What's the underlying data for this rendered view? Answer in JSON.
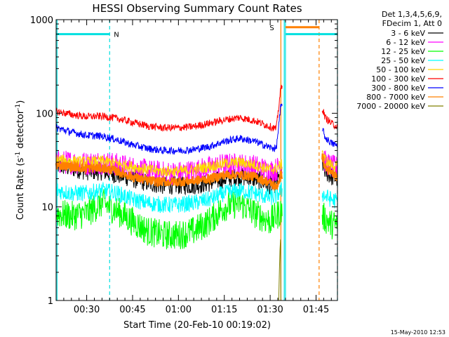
{
  "chart_data": {
    "type": "line",
    "title": "HESSI Observing Summary Count Rates",
    "xlabel": "Start Time (20-Feb-10 00:19:02)",
    "ylabel": "Count Rate (s⁻¹ detector⁻¹)",
    "ylabel_main": "Count Rate (s",
    "ylabel_sup1": "-1",
    "ylabel_mid": " detector",
    "ylabel_sup2": "-1",
    "ylabel_end": ")",
    "yscale": "log",
    "ylim": [
      1,
      1000
    ],
    "xlim_minutes": [
      20.0,
      112.0
    ],
    "x_ticks": [
      {
        "label": "00:30",
        "minutes": 30
      },
      {
        "label": "00:45",
        "minutes": 45
      },
      {
        "label": "01:00",
        "minutes": 60
      },
      {
        "label": "01:15",
        "minutes": 75
      },
      {
        "label": "01:30",
        "minutes": 90
      },
      {
        "label": "01:45",
        "minutes": 105
      }
    ],
    "y_ticks": [
      {
        "label": "1",
        "value": 1
      },
      {
        "label": "10",
        "value": 10
      },
      {
        "label": "100",
        "value": 100
      },
      {
        "label": "1000",
        "value": 1000
      }
    ],
    "legend_header": [
      "Det 1,3,4,5,6,9,",
      "FDecim 1, Att 0"
    ],
    "legend_placement": "right",
    "timestamp": "15-May-2010 12:53",
    "annotations": [
      {
        "label": "N",
        "color": "#00e0e0"
      },
      {
        "label": "S",
        "color": "#ff8000"
      }
    ],
    "vertical_markers": [
      {
        "minutes": 20.3,
        "color": "#00e0e0",
        "style": "solid"
      },
      {
        "minutes": 37.5,
        "color": "#00e0e0",
        "style": "dashed"
      },
      {
        "minutes": 93.5,
        "color": "#ff8000",
        "style": "solid"
      },
      {
        "minutes": 94.6,
        "color": "#00e0e0",
        "style": "solid"
      },
      {
        "minutes": 95.0,
        "color": "#00e0e0",
        "style": "solid"
      },
      {
        "minutes": 106.0,
        "color": "#ff8000",
        "style": "dashed"
      },
      {
        "minutes": 112.0,
        "color": "#00e0e0",
        "style": "dashed"
      }
    ],
    "bars": [
      {
        "color": "#00e0e0",
        "start": 20.0,
        "end": 37.5,
        "value": 700
      },
      {
        "color": "#00e0e0",
        "start": 95.0,
        "end": 112.0,
        "value": 700
      },
      {
        "color": "#ff8000",
        "start": 95.0,
        "end": 106.0,
        "value": 830
      }
    ],
    "data_gap_minutes": [
      94.0,
      107.0
    ],
    "series": [
      {
        "name": "3 - 6 keV",
        "color": "#000000",
        "x": [
          20,
          25,
          30,
          35,
          40,
          45,
          50,
          55,
          60,
          65,
          70,
          75,
          80,
          85,
          90,
          92,
          93.5,
          107,
          108,
          110,
          112
        ],
        "y": [
          28,
          26,
          24,
          24,
          22,
          20,
          18,
          17,
          17,
          17,
          18,
          20,
          21,
          20,
          17,
          18,
          22,
          30,
          24,
          21,
          20
        ]
      },
      {
        "name": "6 - 12 keV",
        "color": "#ff00ff",
        "x": [
          20,
          25,
          30,
          35,
          40,
          45,
          50,
          55,
          60,
          65,
          70,
          75,
          80,
          85,
          90,
          92,
          93.5,
          107,
          108,
          110,
          112
        ],
        "y": [
          30,
          30,
          29,
          30,
          28,
          26,
          24,
          23,
          23,
          24,
          26,
          28,
          28,
          27,
          24,
          25,
          28,
          38,
          30,
          27,
          26
        ]
      },
      {
        "name": "12 - 25 keV",
        "color": "#00ff00",
        "x": [
          20,
          25,
          30,
          35,
          40,
          45,
          50,
          55,
          60,
          65,
          70,
          75,
          80,
          85,
          90,
          92,
          93.5,
          107,
          108,
          110,
          112
        ],
        "y": [
          8.5,
          8,
          8.5,
          11,
          9,
          7,
          5.5,
          5,
          5,
          5.5,
          7,
          10,
          11,
          8.5,
          7,
          8,
          9,
          8,
          7.5,
          6.5,
          6.5
        ]
      },
      {
        "name": "25 - 50 keV",
        "color": "#00ffff",
        "x": [
          20,
          25,
          30,
          35,
          40,
          45,
          50,
          55,
          60,
          65,
          70,
          75,
          80,
          85,
          90,
          92,
          93.5,
          107,
          108,
          110,
          112
        ],
        "y": [
          15,
          14,
          14,
          15,
          14,
          12,
          11,
          10.5,
          10.5,
          11,
          12,
          14,
          15,
          14,
          12.5,
          13,
          15,
          14,
          13,
          12,
          11.5
        ]
      },
      {
        "name": "50 - 100 keV",
        "color": "#ffd700",
        "x": [
          20,
          25,
          30,
          35,
          40,
          45,
          50,
          55,
          60,
          65,
          70,
          75,
          80,
          85,
          90,
          92,
          93.5,
          107,
          108,
          110,
          112
        ],
        "y": [
          32,
          31,
          30,
          31,
          29,
          27,
          25,
          24,
          24,
          25,
          27,
          29,
          30,
          28,
          25,
          26,
          28,
          40,
          32,
          28,
          27
        ]
      },
      {
        "name": "100 - 300 keV",
        "color": "#ff0000",
        "x": [
          20,
          25,
          30,
          35,
          40,
          45,
          50,
          55,
          60,
          65,
          70,
          75,
          80,
          85,
          90,
          92,
          93.5,
          107,
          108,
          110,
          112
        ],
        "y": [
          105,
          97,
          92,
          93,
          88,
          80,
          73,
          70,
          70,
          72,
          78,
          85,
          90,
          83,
          72,
          68,
          190,
          115,
          90,
          78,
          72
        ]
      },
      {
        "name": "300 - 800 keV",
        "color": "#0000ff",
        "x": [
          20,
          25,
          30,
          35,
          40,
          45,
          50,
          55,
          60,
          65,
          70,
          75,
          80,
          85,
          90,
          92,
          93.5,
          107,
          108,
          110,
          112
        ],
        "y": [
          70,
          63,
          58,
          57,
          52,
          46,
          42,
          40,
          40,
          41,
          44,
          50,
          54,
          50,
          43,
          42,
          120,
          70,
          55,
          48,
          45
        ]
      },
      {
        "name": "800 - 7000 keV",
        "color": "#ff8000",
        "x": [
          20,
          25,
          30,
          35,
          40,
          45,
          50,
          55,
          60,
          65,
          70,
          75,
          80,
          85,
          90,
          92,
          93.5,
          107,
          108,
          110,
          112
        ],
        "y": [
          28,
          27,
          26,
          26,
          24,
          21,
          19,
          18.5,
          18.5,
          19,
          20,
          22,
          22,
          21,
          18,
          16,
          22,
          35,
          26,
          23,
          21
        ]
      },
      {
        "name": "7000 - 20000 keV",
        "color": "#808000",
        "x": [
          92.8,
          93.0,
          93.2,
          93.4,
          93.5
        ],
        "y": [
          1.0,
          2.0,
          3.5,
          4.5,
          1.0
        ]
      }
    ]
  }
}
